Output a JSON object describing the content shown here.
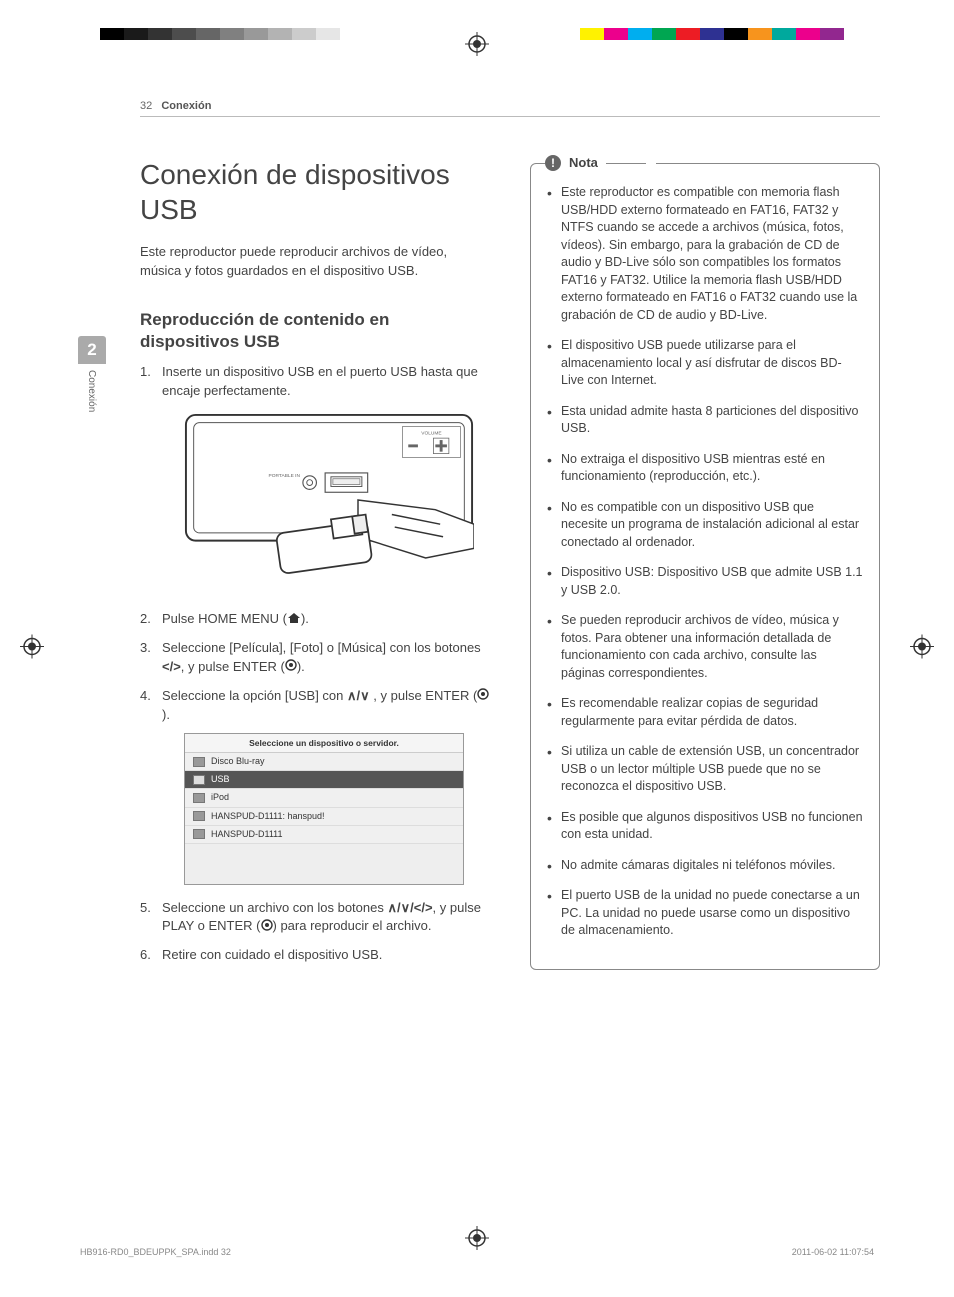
{
  "printer_marks": {
    "gray_swatches": [
      "#000000",
      "#1a1a1a",
      "#333333",
      "#4d4d4d",
      "#666666",
      "#808080",
      "#999999",
      "#b3b3b3",
      "#cccccc",
      "#e6e6e6",
      "#ffffff"
    ],
    "color_swatches": [
      "#fff200",
      "#ec008c",
      "#00aeef",
      "#00a651",
      "#ed1c24",
      "#2e3192",
      "#000000",
      "#f7941d",
      "#00a99d",
      "#ec008c",
      "#92278f"
    ]
  },
  "running_head": {
    "page": "32",
    "section": "Conexión"
  },
  "side_tab": {
    "number": "2",
    "label": "Conexión"
  },
  "h1": "Conexión de dispositivos USB",
  "intro": "Este reproductor puede reproducir archivos de vídeo, música y fotos guardados en el dispositivo USB.",
  "h2": "Reproducción de contenido en dispositivos USB",
  "steps": {
    "s1": "Inserte un dispositivo USB en el puerto USB hasta que encaje perfectamente.",
    "s2_a": "Pulse HOME MENU (",
    "s2_b": ").",
    "s3_a": "Seleccione [Película], [Foto] o [Música] con los botones ",
    "s3_arrows": "</>",
    "s3_b": ", y pulse ENTER (",
    "s3_c": ").",
    "s4_a": "Seleccione la opción [USB] con ",
    "s4_arrows": "∧/∨",
    "s4_b": " , y pulse ENTER (",
    "s4_c": ").",
    "s5_a": "Seleccione un archivo con los botones ",
    "s5_arrows": "∧/∨/</>",
    "s5_b": ", y pulse PLAY o ENTER (",
    "s5_c": ") para reproducir el archivo.",
    "s6": "Retire con cuidado el dispositivo USB."
  },
  "device_diagram": {
    "label_volume": "VOLUME",
    "label_portable": "PORTABLE IN"
  },
  "ui": {
    "header": "Seleccione un dispositivo o servidor.",
    "rows": [
      "Disco Blu-ray",
      "USB",
      "iPod",
      "HANSPUD-D1111: hanspud!",
      "HANSPUD-D1111"
    ],
    "selected_index": 1
  },
  "nota": {
    "label": "Nota",
    "items": [
      "Este reproductor es compatible con memoria flash USB/HDD externo formateado en FAT16, FAT32 y NTFS cuando se accede a archivos (música, fotos, vídeos). Sin embargo, para la grabación de CD de audio y BD-Live sólo son compatibles los formatos FAT16 y FAT32. Utilice la memoria flash USB/HDD externo formateado en FAT16 o FAT32 cuando use la grabación de CD de audio y BD-Live.",
      "El dispositivo USB puede utilizarse para el almacenamiento local y así disfrutar de discos BD-Live con Internet.",
      "Esta unidad admite hasta 8 particiones del dispositivo USB.",
      "No extraiga el dispositivo USB mientras esté en funcionamiento (reproducción, etc.).",
      "No es compatible con un dispositivo USB que necesite un programa de instalación adicional al estar conectado al ordenador.",
      "Dispositivo USB: Dispositivo USB que admite USB 1.1 y USB 2.0.",
      "Se pueden reproducir archivos de vídeo, música y fotos. Para obtener una información detallada de funcionamiento con cada archivo, consulte las páginas correspondientes.",
      "Es recomendable realizar copias de seguridad regularmente para evitar pérdida de datos.",
      "Si utiliza un cable de extensión USB, un concentrador USB o un lector múltiple USB puede que no se reconozca el dispositivo USB.",
      "Es posible que algunos dispositivos USB no funcionen con esta unidad.",
      "No admite cámaras digitales ni teléfonos móviles.",
      "El puerto USB de la unidad no puede conectarse a un PC. La unidad no puede usarse como un dispositivo de almacenamiento."
    ]
  },
  "footer": {
    "file": "HB916-RD0_BDEUPPK_SPA.indd   32",
    "datetime": "2011-06-02     11:07:54"
  }
}
